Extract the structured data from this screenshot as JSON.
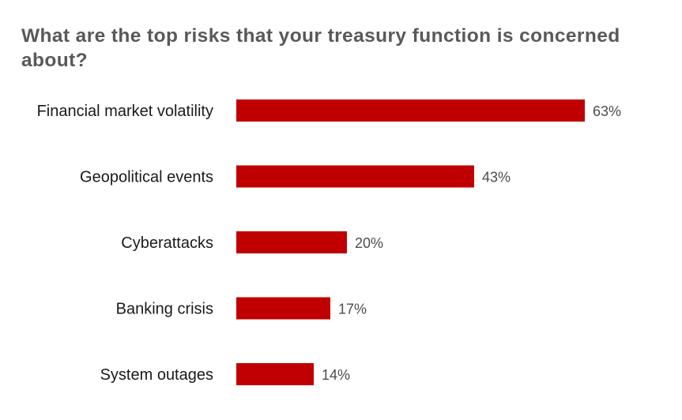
{
  "chart_data": {
    "type": "bar",
    "orientation": "horizontal",
    "title": "What are the top risks that your treasury function is concerned about?",
    "categories": [
      "Financial market volatility",
      "Geopolitical events",
      "Cyberattacks",
      "Banking crisis",
      "System outages"
    ],
    "values": [
      63,
      43,
      20,
      17,
      14
    ],
    "value_labels": [
      "63%",
      "43%",
      "20%",
      "17%",
      "14%"
    ],
    "unit": "%",
    "xlim": [
      0,
      100
    ],
    "grid": false,
    "legend": "none",
    "bar_color": "#c00000"
  }
}
